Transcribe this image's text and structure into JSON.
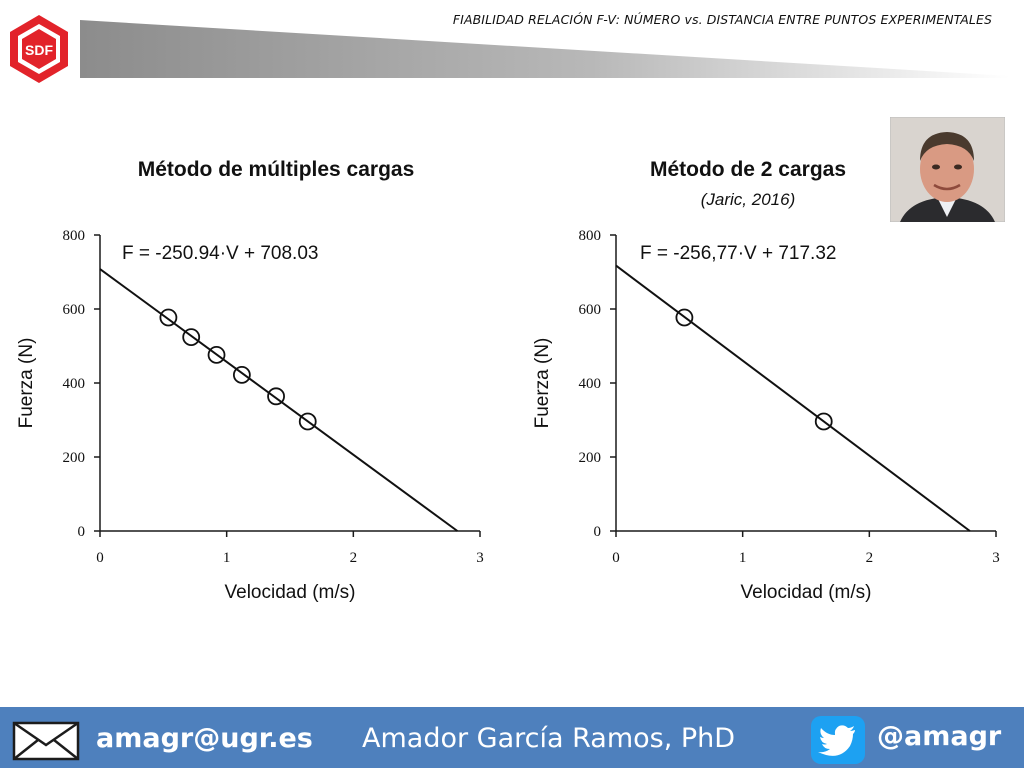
{
  "header": {
    "logo_text": "SDF",
    "title": "FIABILIDAD RELACIÓN F-V: NÚMERO vs. DISTANCIA ENTRE PUNTOS EXPERIMENTALES"
  },
  "colors": {
    "brand_red": "#e2232a",
    "footer_blue": "#4e80bd",
    "header_gray": "#8c8c8c"
  },
  "chart_data": [
    {
      "type": "scatter",
      "title": "Método de múltiples cargas",
      "subtitle": "",
      "equation": "F = -250.94·V + 708.03",
      "xlabel": "Velocidad (m/s)",
      "ylabel": "Fuerza (N)",
      "xlim": [
        0,
        3
      ],
      "ylim": [
        0,
        800
      ],
      "xticks": [
        "0",
        "1",
        "2",
        "3"
      ],
      "yticks": [
        "0",
        "200",
        "400",
        "600",
        "800"
      ],
      "points": [
        [
          0.54,
          577
        ],
        [
          0.72,
          524
        ],
        [
          0.92,
          476
        ],
        [
          1.12,
          422
        ],
        [
          1.39,
          364
        ],
        [
          1.64,
          296
        ]
      ],
      "fit": {
        "slope": -250.94,
        "intercept": 708.03
      },
      "grid": false
    },
    {
      "type": "scatter",
      "title": "Método de 2 cargas",
      "subtitle": "(Jaric, 2016)",
      "equation": "F = -256,77·V + 717.32",
      "xlabel": "Velocidad (m/s)",
      "ylabel": "Fuerza (N)",
      "xlim": [
        0,
        3
      ],
      "ylim": [
        0,
        800
      ],
      "xticks": [
        "0",
        "1",
        "2",
        "3"
      ],
      "yticks": [
        "0",
        "200",
        "400",
        "600",
        "800"
      ],
      "points": [
        [
          0.54,
          577
        ],
        [
          1.64,
          296
        ]
      ],
      "fit": {
        "slope": -256.77,
        "intercept": 717.32
      },
      "grid": false
    }
  ],
  "footer": {
    "email": "amagr@ugr.es",
    "name": "Amador García Ramos, PhD",
    "handle": "@amagr",
    "mail_icon": "envelope-icon",
    "social_icon": "twitter-bird-icon"
  }
}
